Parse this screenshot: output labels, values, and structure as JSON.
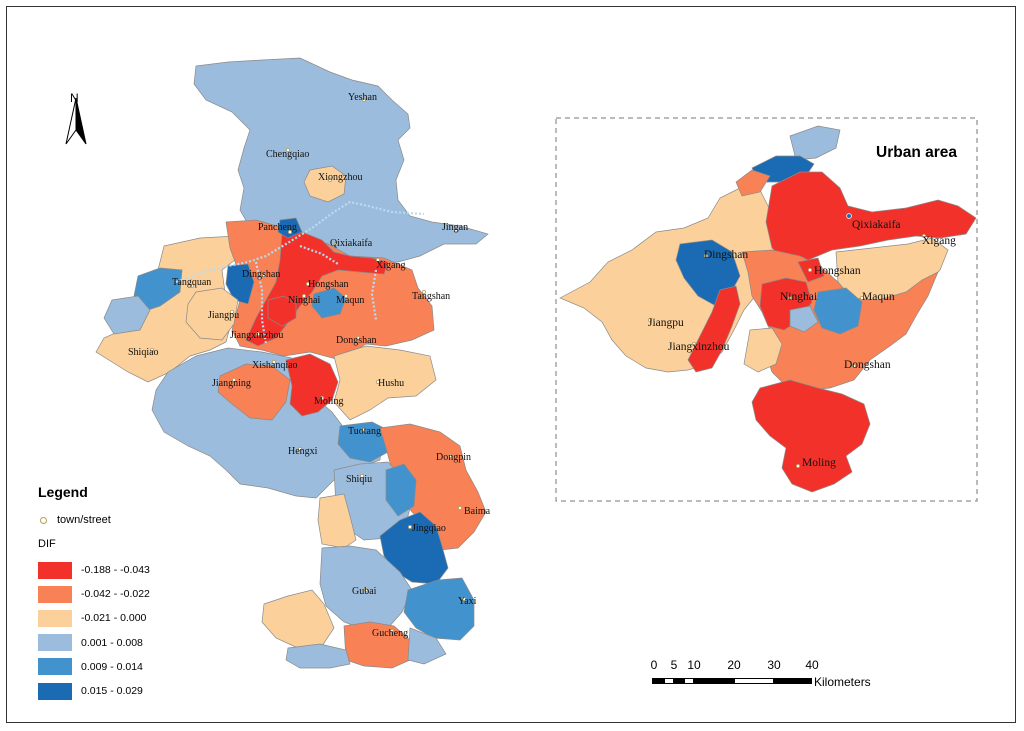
{
  "north_arrow": "N",
  "inset": {
    "title": "Urban area"
  },
  "legend": {
    "title": "Legend",
    "point_label": "town/street",
    "field": "DIF",
    "classes": [
      {
        "range": "-0.188 - -0.043",
        "color": "#f2322a"
      },
      {
        "range": "-0.042 - -0.022",
        "color": "#f88156"
      },
      {
        "range": "-0.021 - 0.000",
        "color": "#fbd09b"
      },
      {
        "range": "0.001 - 0.008",
        "color": "#9bbcdc"
      },
      {
        "range": "0.009 - 0.014",
        "color": "#4292ce"
      },
      {
        "range": "0.015 - 0.029",
        "color": "#1a6bb4"
      }
    ]
  },
  "scale_bar": {
    "ticks": [
      "0",
      "5",
      "10",
      "20",
      "30",
      "40"
    ],
    "unit": "Kilometers"
  },
  "main_labels": {
    "yeshan": "Yeshan",
    "chengqiao": "Chengqiao",
    "xiongzhou": "Xiongzhou",
    "jingan": "Jingan",
    "pancheng": "Pancheng",
    "qixiakaifa": "Qixiakaifa",
    "dingshan": "Dingshan",
    "hongshan": "Hongshan",
    "xigang": "Xigang",
    "tangquan": "Tangquan",
    "ninghai": "Ninghai",
    "maqun": "Maqun",
    "tangshan": "Tangshan",
    "jiangpu": "Jiangpu",
    "jiangxinzhou": "Jiangxinzhou",
    "dongshan": "Dongshan",
    "shiqiao": "Shiqiao",
    "xishanqiao": "Xishanqiao",
    "jiangning": "Jiangning",
    "hushu": "Hushu",
    "moling": "Moling",
    "tuotang": "Tuotang",
    "dongpin": "Dongpin",
    "hengxi": "Hengxi",
    "shiqiu": "Shiqiu",
    "baima": "Baima",
    "jingqiao": "Jingqiao",
    "gubai": "Gubai",
    "yaxi": "Yaxi",
    "gucheng": "Gucheng"
  },
  "inset_labels": {
    "qixiakaifa": "Qixiakaifa",
    "xigang": "Xigang",
    "dingshan": "Dingshan",
    "hongshan": "Hongshan",
    "ninghai": "Ninghai",
    "maqun": "Maqun",
    "jiangpu": "Jiangpu",
    "jiangxinzhou": "Jiangxinzhou",
    "dongshan": "Dongshan",
    "moling": "Moling"
  }
}
